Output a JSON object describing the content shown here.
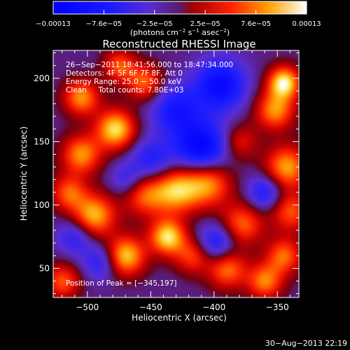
{
  "chart_data": {
    "type": "heatmap",
    "title": "Reconstructed RHESSI Image",
    "xlabel": "Heliocentric X (arcsec)",
    "ylabel": "Heliocentric Y (arcsec)",
    "xlim": [
      -527,
      -333
    ],
    "ylim": [
      27,
      222
    ],
    "x_ticks": [
      -500,
      -450,
      -400,
      -350
    ],
    "y_ticks": [
      50,
      100,
      150,
      200
    ],
    "x_tick_labels": [
      "−500",
      "−450",
      "−400",
      "−350"
    ],
    "y_tick_labels": [
      "50",
      "100",
      "150",
      "200"
    ],
    "colorbar": {
      "min": -0.00013,
      "max": 0.00013,
      "tick_labels": [
        "−0.00013",
        "−7.6e−05",
        "−2.5e−05",
        "2.5e−05",
        "7.6e−05",
        "0.00013"
      ],
      "units_main": "(photons cm",
      "units_exp1": "−2",
      "units_mid": " s",
      "units_exp2": "−1",
      "units_end": " asec",
      "units_exp3": "−2",
      "units_close": ")"
    },
    "annotations": [
      "26−Sep−2011 18:41:56.000 to 18:47:34.000",
      "Detectors: 4F 5F 6F 7F 8F, Att 0",
      "Energy Range: 25.0 − 50.0 keV",
      "Clean     Total counts: 7.80E+03"
    ],
    "peak_label": "Position of Peak = [−345,197]",
    "sources": [
      {
        "x": -345,
        "y": 197,
        "amp": 1.0,
        "sigma": 9
      },
      {
        "x": -352,
        "y": 175,
        "amp": 0.75,
        "sigma": 11
      },
      {
        "x": -343,
        "y": 130,
        "amp": 0.8,
        "sigma": 12
      },
      {
        "x": -340,
        "y": 95,
        "amp": 0.6,
        "sigma": 11
      },
      {
        "x": -345,
        "y": 60,
        "amp": 0.65,
        "sigma": 10
      },
      {
        "x": -360,
        "y": 40,
        "amp": 0.7,
        "sigma": 10
      },
      {
        "x": -378,
        "y": 85,
        "amp": 0.65,
        "sigma": 12
      },
      {
        "x": -390,
        "y": 50,
        "amp": 0.7,
        "sigma": 11
      },
      {
        "x": -405,
        "y": 118,
        "amp": 0.8,
        "sigma": 13
      },
      {
        "x": -430,
        "y": 112,
        "amp": 0.85,
        "sigma": 13
      },
      {
        "x": -455,
        "y": 108,
        "amp": 0.6,
        "sigma": 12
      },
      {
        "x": -437,
        "y": 75,
        "amp": 0.95,
        "sigma": 10
      },
      {
        "x": -417,
        "y": 60,
        "amp": 0.55,
        "sigma": 10
      },
      {
        "x": -470,
        "y": 60,
        "amp": 0.9,
        "sigma": 11
      },
      {
        "x": -495,
        "y": 92,
        "amp": 0.85,
        "sigma": 12
      },
      {
        "x": -515,
        "y": 110,
        "amp": 0.6,
        "sigma": 10
      },
      {
        "x": -505,
        "y": 140,
        "amp": 0.75,
        "sigma": 11
      },
      {
        "x": -478,
        "y": 160,
        "amp": 0.95,
        "sigma": 11
      },
      {
        "x": -505,
        "y": 185,
        "amp": 0.75,
        "sigma": 10
      },
      {
        "x": -455,
        "y": 197,
        "amp": 0.65,
        "sigma": 10
      },
      {
        "x": -475,
        "y": 210,
        "amp": 0.6,
        "sigma": 9
      },
      {
        "x": -520,
        "y": 40,
        "amp": 0.6,
        "sigma": 10
      },
      {
        "x": -380,
        "y": 150,
        "amp": 0.45,
        "sigma": 10
      },
      {
        "x": -410,
        "y": 145,
        "amp": -0.9,
        "sigma": 15
      },
      {
        "x": -395,
        "y": 195,
        "amp": -0.8,
        "sigma": 14
      },
      {
        "x": -430,
        "y": 175,
        "amp": -0.6,
        "sigma": 14
      },
      {
        "x": -450,
        "y": 135,
        "amp": -0.5,
        "sigma": 12
      },
      {
        "x": -398,
        "y": 70,
        "amp": -0.6,
        "sigma": 11
      },
      {
        "x": -360,
        "y": 110,
        "amp": -0.55,
        "sigma": 10
      },
      {
        "x": -490,
        "y": 55,
        "amp": -0.45,
        "sigma": 10
      },
      {
        "x": -510,
        "y": 75,
        "amp": -0.45,
        "sigma": 10
      },
      {
        "x": -470,
        "y": 120,
        "amp": -0.35,
        "sigma": 9
      }
    ]
  },
  "footer": {
    "timestamp": "30−Aug−2013 22:19"
  }
}
